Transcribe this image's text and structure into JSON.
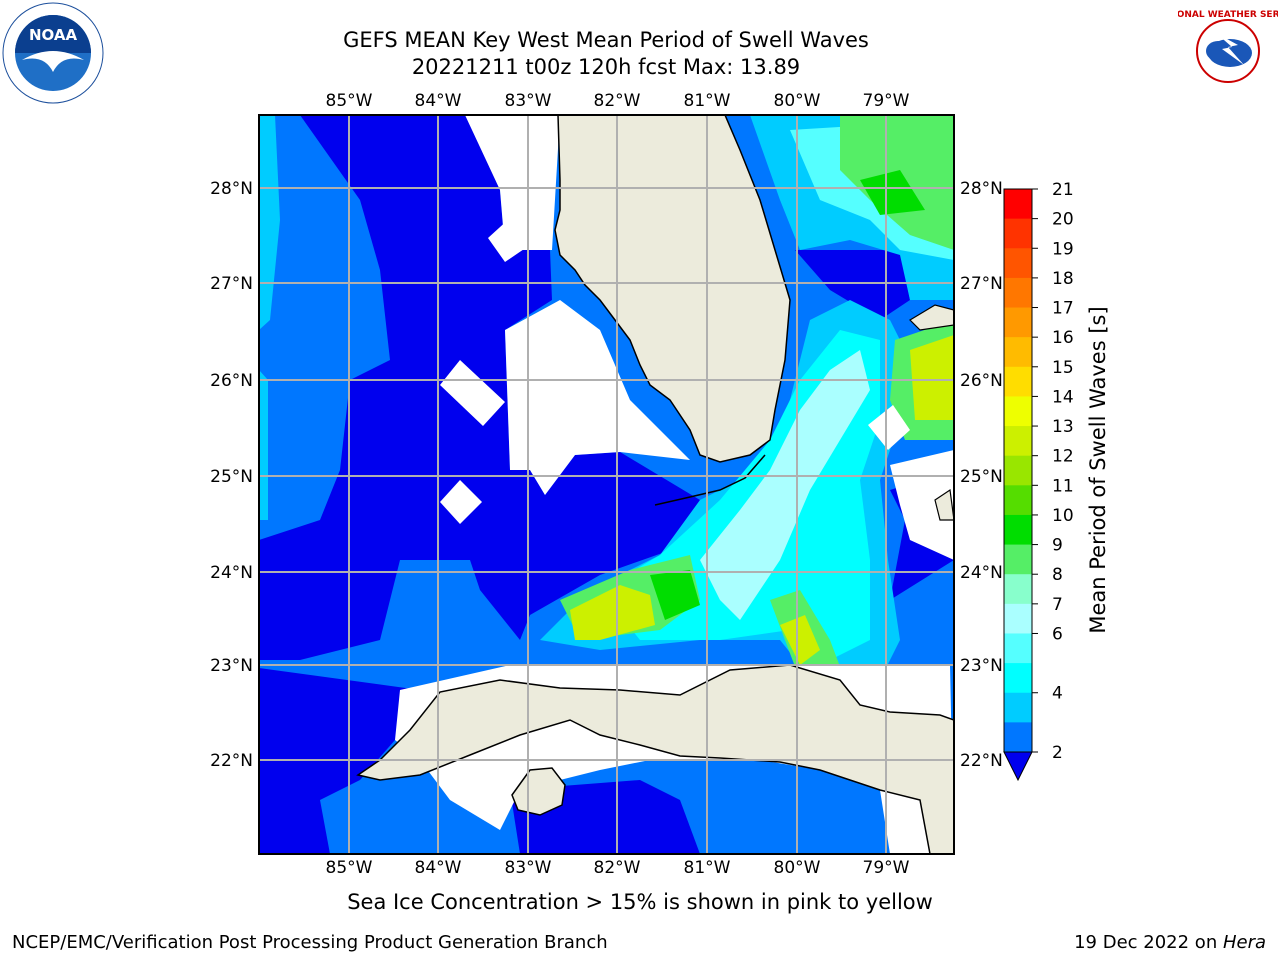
{
  "header": {
    "title_line1": "GEFS MEAN Key West Mean Period of Swell Waves",
    "title_line2": "20221211 t00z 120h fcst   Max: 13.89"
  },
  "map": {
    "top_lon_labels": [
      "85°W",
      "84°W",
      "83°W",
      "82°W",
      "81°W",
      "80°W",
      "79°W"
    ],
    "bottom_lon_labels": [
      "85°W",
      "84°W",
      "83°W",
      "82°W",
      "81°W",
      "80°W",
      "79°W"
    ],
    "left_lat_labels": [
      "28°N",
      "27°N",
      "26°N",
      "25°N",
      "24°N",
      "23°N",
      "22°N"
    ],
    "right_lat_labels": [
      "28°N",
      "27°N",
      "26°N",
      "25°N",
      "24°N",
      "23°N",
      "22°N"
    ],
    "land_color": "#ecebdc",
    "grid_color": "#b0b0b0"
  },
  "colorbar": {
    "label": "Mean Period of Swell Waves [s]",
    "ticks": [
      "21",
      "20",
      "19",
      "18",
      "17",
      "16",
      "15",
      "14",
      "13",
      "12",
      "11",
      "10",
      "9",
      "8",
      "7",
      "6",
      "4",
      "2"
    ],
    "colors": [
      "#ff0000",
      "#ff3300",
      "#ff5500",
      "#ff7700",
      "#ff9900",
      "#ffbb00",
      "#ffdd00",
      "#eeff00",
      "#ccf000",
      "#99e600",
      "#55dd00",
      "#00dd00",
      "#55ee66",
      "#88ffcc",
      "#aaffff",
      "#55ffff",
      "#00ffff",
      "#00ccff",
      "#0077ff"
    ],
    "extend_color": "#0000ee"
  },
  "caption": "Sea Ice Concentration > 15% is shown in pink to yellow",
  "footer": {
    "left": "NCEP/EMC/Verification Post Processing Product Generation Branch",
    "right_date": "19 Dec 2022 on ",
    "right_host": "Hera"
  },
  "logos": {
    "noaa_text": "NOAA",
    "nws_text": "NATIONAL WEATHER SERVICE"
  }
}
